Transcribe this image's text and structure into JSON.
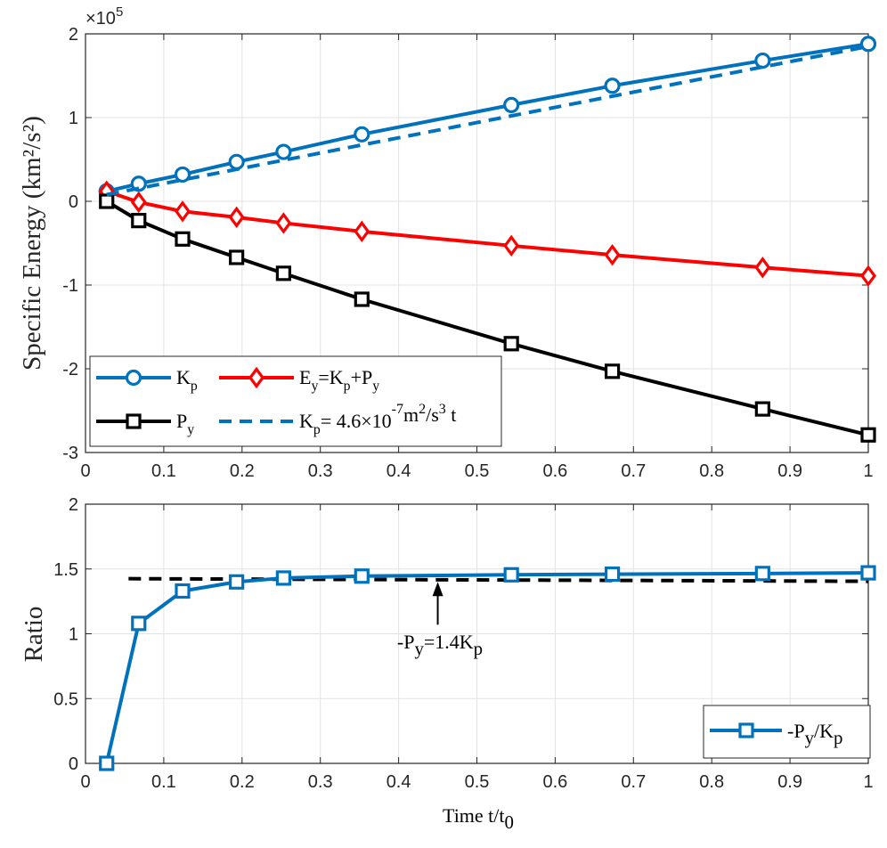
{
  "chart_data": [
    {
      "type": "line",
      "ylabel": "Specific Energy (km²/s²)",
      "exponent_base": "×10",
      "exponent_power": "5",
      "xlim": [
        0,
        1
      ],
      "ylim": [
        -3,
        2
      ],
      "xticks": [
        "0",
        "0.1",
        "0.2",
        "0.3",
        "0.4",
        "0.5",
        "0.6",
        "0.7",
        "0.8",
        "0.9",
        "1"
      ],
      "yticks": [
        "-3",
        "-2",
        "-1",
        "0",
        "1",
        "2"
      ],
      "grid": true,
      "legend_placement": "bottom-left",
      "x": [
        0.027,
        0.068,
        0.124,
        0.193,
        0.253,
        0.353,
        0.544,
        0.673,
        0.865,
        1.0
      ],
      "series": [
        {
          "name": "Kp",
          "label_main": "K",
          "label_sub": "p",
          "color": "#0072BD",
          "marker": "circle",
          "style": "solid",
          "values": [
            0.12,
            0.21,
            0.32,
            0.47,
            0.59,
            0.8,
            1.15,
            1.38,
            1.68,
            1.88
          ]
        },
        {
          "name": "Ey=Kp+Py",
          "label_parts": [
            [
              "E",
              "y"
            ],
            [
              "=K",
              "p"
            ],
            [
              "+P",
              "y"
            ]
          ],
          "color": "#FF0000",
          "marker": "diamond",
          "style": "solid",
          "values": [
            0.12,
            -0.01,
            -0.12,
            -0.19,
            -0.26,
            -0.36,
            -0.53,
            -0.64,
            -0.79,
            -0.89
          ]
        },
        {
          "name": "Py",
          "label_main": "P",
          "label_sub": "y",
          "color": "#000000",
          "marker": "square",
          "style": "solid",
          "values": [
            0.0,
            -0.23,
            -0.45,
            -0.67,
            -0.86,
            -1.17,
            -1.7,
            -2.03,
            -2.48,
            -2.79
          ]
        },
        {
          "name": "Kp = 4.6×10^-7 m²/s³ t",
          "label_parts": [
            "K",
            "p",
            "= 4.6×10",
            "-7",
            "m",
            "2",
            "/s",
            "3",
            " t"
          ],
          "color": "#0072BD",
          "marker": "none",
          "style": "dashed",
          "x": [
            0.027,
            1.0
          ],
          "values": [
            0.08,
            1.85
          ]
        }
      ]
    },
    {
      "type": "line",
      "xlabel": "Time t/t0",
      "xlabel_main": "Time t/t",
      "xlabel_sub": "0",
      "ylabel": "Ratio",
      "xlim": [
        0,
        1
      ],
      "ylim": [
        0,
        2
      ],
      "xticks": [
        "0",
        "0.1",
        "0.2",
        "0.3",
        "0.4",
        "0.5",
        "0.6",
        "0.7",
        "0.8",
        "0.9",
        "1"
      ],
      "yticks": [
        "0",
        "0.5",
        "1",
        "1.5",
        "2"
      ],
      "grid": true,
      "legend_placement": "bottom-right",
      "x": [
        0.027,
        0.068,
        0.124,
        0.193,
        0.253,
        0.353,
        0.544,
        0.673,
        0.865,
        1.0
      ],
      "series": [
        {
          "name": "-Py/Kp",
          "label_parts": [
            "-P",
            "y",
            "/K",
            "p"
          ],
          "color": "#0072BD",
          "marker": "square",
          "style": "solid",
          "values": [
            0.0,
            1.08,
            1.33,
            1.4,
            1.43,
            1.445,
            1.455,
            1.46,
            1.465,
            1.47
          ]
        },
        {
          "name": "reference",
          "color": "#000000",
          "marker": "none",
          "style": "dashed",
          "x": [
            0.055,
            1.0
          ],
          "values": [
            1.425,
            1.405
          ]
        }
      ],
      "annotation": {
        "parts": [
          "-P",
          "y",
          "=1.4K",
          "p"
        ],
        "arrow_x": 0.45,
        "arrow_y_tail": 1.07,
        "arrow_y_head": 1.4
      }
    }
  ]
}
